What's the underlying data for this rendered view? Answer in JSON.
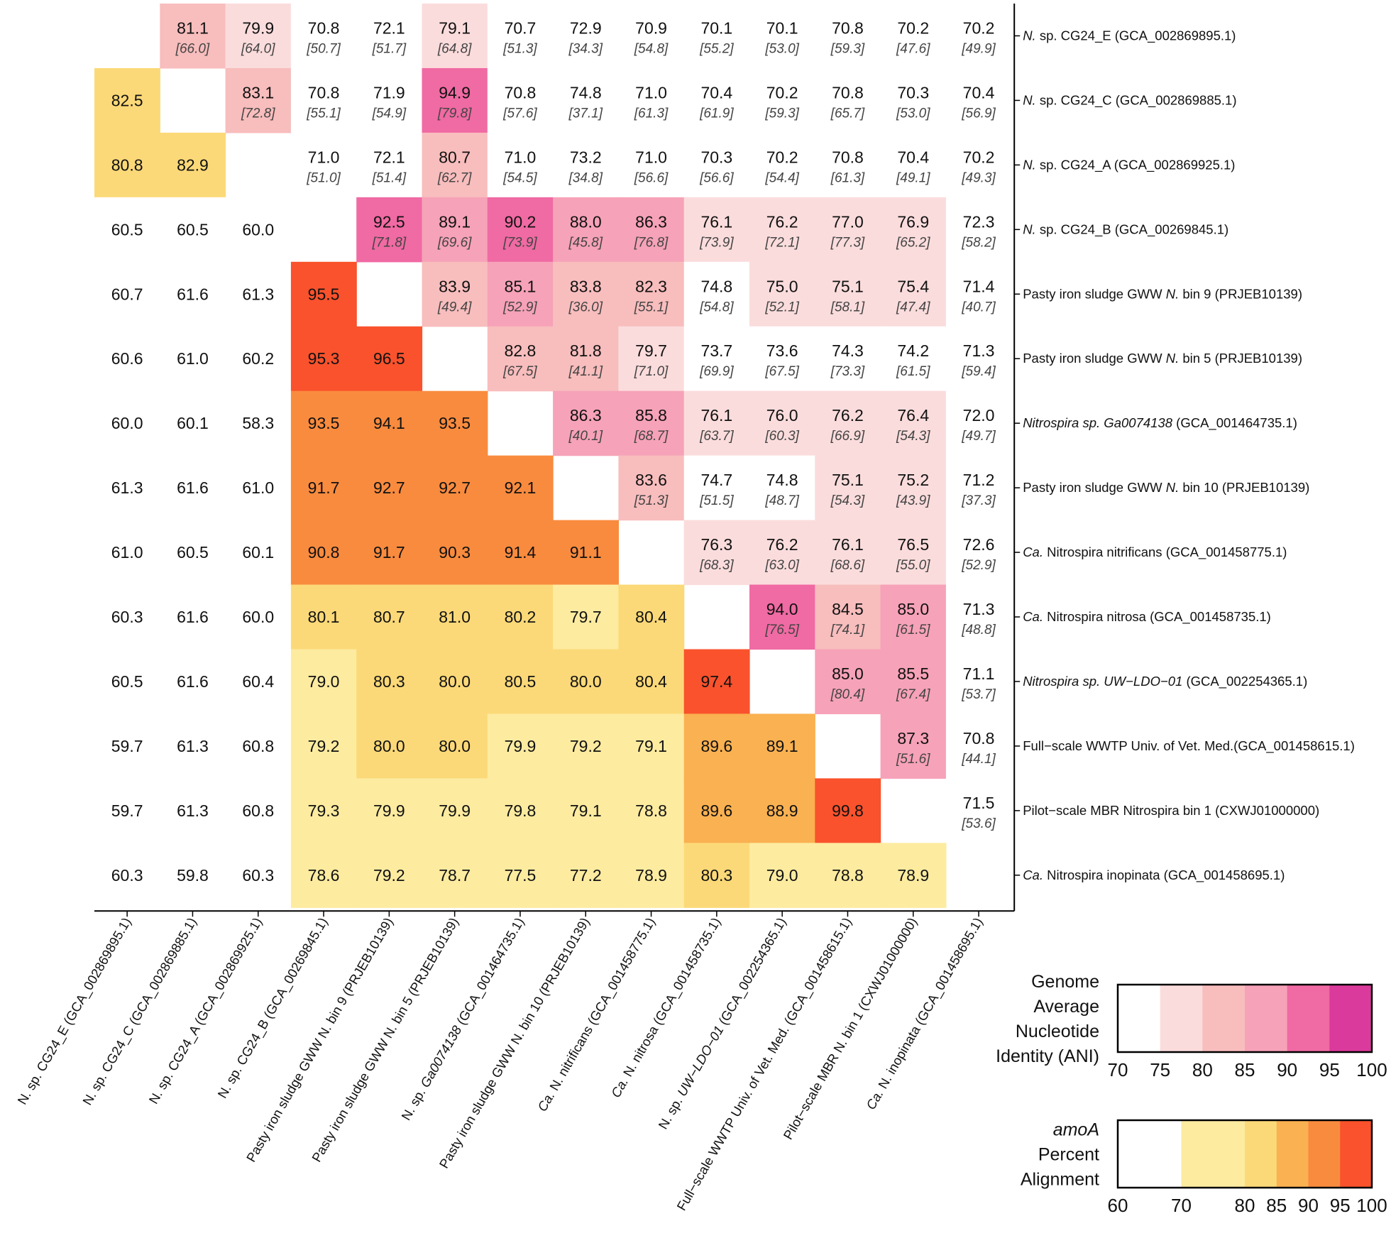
{
  "chart_data": {
    "type": "heatmap",
    "labels": [
      {
        "row": [
          {
            "t": "N.",
            "i": true
          },
          {
            "t": " sp. CG24_E (GCA_002869895.1)",
            "i": false
          }
        ],
        "col": [
          {
            "t": "N. sp. CG24_E (GCA_002869895.1)",
            "i": false
          }
        ]
      },
      {
        "row": [
          {
            "t": "N.",
            "i": true
          },
          {
            "t": " sp. CG24_C (GCA_002869885.1)",
            "i": false
          }
        ],
        "col": [
          {
            "t": "N. sp. CG24_C (GCA_002869885.1)",
            "i": false
          }
        ]
      },
      {
        "row": [
          {
            "t": "N.",
            "i": true
          },
          {
            "t": " sp. CG24_A (GCA_002869925.1)",
            "i": false
          }
        ],
        "col": [
          {
            "t": "N. sp. CG24_A (GCA_002869925.1)",
            "i": false
          }
        ]
      },
      {
        "row": [
          {
            "t": "N.",
            "i": true
          },
          {
            "t": " sp. CG24_B (GCA_00269845.1)",
            "i": false
          }
        ],
        "col": [
          {
            "t": "N. sp. CG24_B (GCA_00269845.1)",
            "i": false
          }
        ]
      },
      {
        "row": [
          {
            "t": "Pasty iron sludge GWW ",
            "i": false
          },
          {
            "t": "N.",
            "i": true
          },
          {
            "t": " bin 9 (PRJEB10139)",
            "i": false
          }
        ],
        "col": [
          {
            "t": "Pasty iron sludge GWW N. bin 9 (PRJEB10139)",
            "i": false
          }
        ]
      },
      {
        "row": [
          {
            "t": "Pasty iron sludge GWW ",
            "i": false
          },
          {
            "t": "N.",
            "i": true
          },
          {
            "t": " bin 5 (PRJEB10139)",
            "i": false
          }
        ],
        "col": [
          {
            "t": "Pasty iron sludge GWW N. bin 5 (PRJEB10139)",
            "i": false
          }
        ]
      },
      {
        "row": [
          {
            "t": "Nitrospira sp. Ga0074138",
            "i": true
          },
          {
            "t": " (GCA_001464735.1)",
            "i": false
          }
        ],
        "col": [
          {
            "t": "N. sp. ",
            "i": false
          },
          {
            "t": "Ga0074138",
            "i": true
          },
          {
            "t": " (GCA_001464735.1)",
            "i": false
          }
        ]
      },
      {
        "row": [
          {
            "t": "Pasty iron sludge GWW ",
            "i": false
          },
          {
            "t": "N.",
            "i": true
          },
          {
            "t": " bin 10 (PRJEB10139)",
            "i": false
          }
        ],
        "col": [
          {
            "t": "Pasty iron sludge GWW N. bin 10 (PRJEB10139)",
            "i": false
          }
        ]
      },
      {
        "row": [
          {
            "t": "Ca.",
            "i": true
          },
          {
            "t": " Nitrospira nitrificans (GCA_001458775.1)",
            "i": false
          }
        ],
        "col": [
          {
            "t": "Ca.",
            "i": true
          },
          {
            "t": " N. nitrificans (GCA_001458775.1)",
            "i": false
          }
        ]
      },
      {
        "row": [
          {
            "t": "Ca.",
            "i": true
          },
          {
            "t": " Nitrospira nitrosa (GCA_001458735.1)",
            "i": false
          }
        ],
        "col": [
          {
            "t": "Ca.",
            "i": true
          },
          {
            "t": " N. nitrosa (GCA_001458735.1)",
            "i": false
          }
        ]
      },
      {
        "row": [
          {
            "t": "Nitrospira sp. UW−LDO−01",
            "i": true
          },
          {
            "t": " (GCA_002254365.1)",
            "i": false
          }
        ],
        "col": [
          {
            "t": "N. sp. ",
            "i": false
          },
          {
            "t": "UW−LDO−01",
            "i": true
          },
          {
            "t": " (GCA_002254365.1)",
            "i": false
          }
        ]
      },
      {
        "row": [
          {
            "t": "Full−scale WWTP Univ. of Vet. Med.(GCA_001458615.1)",
            "i": false
          }
        ],
        "col": [
          {
            "t": "Full−scale WWTP Univ. of Vet. Med. (GCA_001458615.1)",
            "i": false
          }
        ]
      },
      {
        "row": [
          {
            "t": "Pilot−scale MBR Nitrospira bin 1 (CXWJ01000000)",
            "i": false
          }
        ],
        "col": [
          {
            "t": "Pilot−scale MBR N. bin 1 (CXWJ01000000)",
            "i": false
          }
        ]
      },
      {
        "row": [
          {
            "t": "Ca.",
            "i": true
          },
          {
            "t": " Nitrospira inopinata (GCA_001458695.1)",
            "i": false
          }
        ],
        "col": [
          {
            "t": "Ca.",
            "i": true
          },
          {
            "t": " N. inopinata (GCA_001458695.1)",
            "i": false
          }
        ]
      }
    ],
    "upper": [
      [
        null,
        [
          81.1,
          "66.0"
        ],
        [
          79.9,
          "64.0"
        ],
        [
          70.8,
          "50.7"
        ],
        [
          72.1,
          "51.7"
        ],
        [
          79.1,
          "64.8"
        ],
        [
          70.7,
          "51.3"
        ],
        [
          72.9,
          "34.3"
        ],
        [
          70.9,
          "54.8"
        ],
        [
          70.1,
          "55.2"
        ],
        [
          70.1,
          "53.0"
        ],
        [
          70.8,
          "59.3"
        ],
        [
          70.2,
          "47.6"
        ],
        [
          70.2,
          "49.9"
        ]
      ],
      [
        null,
        null,
        [
          83.1,
          "72.8"
        ],
        [
          70.8,
          "55.1"
        ],
        [
          71.9,
          "54.9"
        ],
        [
          94.9,
          "79.8"
        ],
        [
          70.8,
          "57.6"
        ],
        [
          74.8,
          "37.1"
        ],
        [
          71.0,
          "61.3"
        ],
        [
          70.4,
          "61.9"
        ],
        [
          70.2,
          "59.3"
        ],
        [
          70.8,
          "65.7"
        ],
        [
          70.3,
          "53.0"
        ],
        [
          70.4,
          "56.9"
        ]
      ],
      [
        null,
        null,
        null,
        [
          71.0,
          "51.0"
        ],
        [
          72.1,
          "51.4"
        ],
        [
          80.7,
          "62.7"
        ],
        [
          71.0,
          "54.5"
        ],
        [
          73.2,
          "34.8"
        ],
        [
          71.0,
          "56.6"
        ],
        [
          70.3,
          "56.6"
        ],
        [
          70.2,
          "54.4"
        ],
        [
          70.8,
          "61.3"
        ],
        [
          70.4,
          "49.1"
        ],
        [
          70.2,
          "49.3"
        ]
      ],
      [
        null,
        null,
        null,
        null,
        [
          92.5,
          "71.8"
        ],
        [
          89.1,
          "69.6"
        ],
        [
          90.2,
          "73.9"
        ],
        [
          88.0,
          "45.8"
        ],
        [
          86.3,
          "76.8"
        ],
        [
          76.1,
          "73.9"
        ],
        [
          76.2,
          "72.1"
        ],
        [
          77.0,
          "77.3"
        ],
        [
          76.9,
          "65.2"
        ],
        [
          72.3,
          "58.2"
        ]
      ],
      [
        null,
        null,
        null,
        null,
        null,
        [
          83.9,
          "49.4"
        ],
        [
          85.1,
          "52.9"
        ],
        [
          83.8,
          "36.0"
        ],
        [
          82.3,
          "55.1"
        ],
        [
          74.8,
          "54.8"
        ],
        [
          75.0,
          "52.1"
        ],
        [
          75.1,
          "58.1"
        ],
        [
          75.4,
          "47.4"
        ],
        [
          71.4,
          "40.7"
        ]
      ],
      [
        null,
        null,
        null,
        null,
        null,
        null,
        [
          82.8,
          "67.5"
        ],
        [
          81.8,
          "41.1"
        ],
        [
          79.7,
          "71.0"
        ],
        [
          73.7,
          "69.9"
        ],
        [
          73.6,
          "67.5"
        ],
        [
          74.3,
          "73.3"
        ],
        [
          74.2,
          "61.5"
        ],
        [
          71.3,
          "59.4"
        ]
      ],
      [
        null,
        null,
        null,
        null,
        null,
        null,
        null,
        [
          86.3,
          "40.1"
        ],
        [
          85.8,
          "68.7"
        ],
        [
          76.1,
          "63.7"
        ],
        [
          76.0,
          "60.3"
        ],
        [
          76.2,
          "66.9"
        ],
        [
          76.4,
          "54.3"
        ],
        [
          72.0,
          "49.7"
        ]
      ],
      [
        null,
        null,
        null,
        null,
        null,
        null,
        null,
        null,
        [
          83.6,
          "51.3"
        ],
        [
          74.7,
          "51.5"
        ],
        [
          74.8,
          "48.7"
        ],
        [
          75.1,
          "54.3"
        ],
        [
          75.2,
          "43.9"
        ],
        [
          71.2,
          "37.3"
        ]
      ],
      [
        null,
        null,
        null,
        null,
        null,
        null,
        null,
        null,
        null,
        [
          76.3,
          "68.3"
        ],
        [
          76.2,
          "63.0"
        ],
        [
          76.1,
          "68.6"
        ],
        [
          76.5,
          "55.0"
        ],
        [
          72.6,
          "52.9"
        ]
      ],
      [
        null,
        null,
        null,
        null,
        null,
        null,
        null,
        null,
        null,
        null,
        [
          94.0,
          "76.5"
        ],
        [
          84.5,
          "74.1"
        ],
        [
          85.0,
          "61.5"
        ],
        [
          71.3,
          "48.8"
        ]
      ],
      [
        null,
        null,
        null,
        null,
        null,
        null,
        null,
        null,
        null,
        null,
        null,
        [
          85.0,
          "80.4"
        ],
        [
          85.5,
          "67.4"
        ],
        [
          71.1,
          "53.7"
        ]
      ],
      [
        null,
        null,
        null,
        null,
        null,
        null,
        null,
        null,
        null,
        null,
        null,
        null,
        [
          87.3,
          "51.6"
        ],
        [
          70.8,
          "44.1"
        ]
      ],
      [
        null,
        null,
        null,
        null,
        null,
        null,
        null,
        null,
        null,
        null,
        null,
        null,
        null,
        [
          71.5,
          "53.6"
        ]
      ],
      [
        null,
        null,
        null,
        null,
        null,
        null,
        null,
        null,
        null,
        null,
        null,
        null,
        null,
        null
      ]
    ],
    "lower": [
      [],
      [
        82.5
      ],
      [
        80.8,
        82.9
      ],
      [
        60.5,
        60.5,
        60.0
      ],
      [
        60.7,
        61.6,
        61.3,
        95.5
      ],
      [
        60.6,
        61.0,
        60.2,
        95.3,
        96.5
      ],
      [
        60.0,
        60.1,
        58.3,
        93.5,
        94.1,
        93.5
      ],
      [
        61.3,
        61.6,
        61.0,
        91.7,
        92.7,
        92.7,
        92.1
      ],
      [
        61.0,
        60.5,
        60.1,
        90.8,
        91.7,
        90.3,
        91.4,
        91.1
      ],
      [
        60.3,
        61.6,
        60.0,
        80.1,
        80.7,
        81.0,
        80.2,
        79.7,
        80.4
      ],
      [
        60.5,
        61.6,
        60.4,
        79.0,
        80.3,
        80.0,
        80.5,
        80.0,
        80.4,
        97.4
      ],
      [
        59.7,
        61.3,
        60.8,
        79.2,
        80.0,
        80.0,
        79.9,
        79.2,
        79.1,
        89.6,
        89.1
      ],
      [
        59.7,
        61.3,
        60.8,
        79.3,
        79.9,
        79.9,
        79.8,
        79.1,
        78.8,
        89.6,
        88.9,
        99.8
      ],
      [
        60.3,
        59.8,
        60.3,
        78.6,
        79.2,
        78.7,
        77.5,
        77.2,
        78.9,
        80.3,
        79.0,
        78.8,
        78.9
      ]
    ],
    "ani_scale": {
      "title": [
        "Genome",
        "Average",
        "Nucleotide",
        "Identity (ANI)"
      ],
      "ticks": [
        70,
        75,
        80,
        85,
        90,
        95,
        100
      ],
      "breaks": [
        70,
        75,
        80,
        85,
        90,
        95,
        100
      ],
      "colors": [
        "#ffffff",
        "#fbdcdc",
        "#f8bdbd",
        "#f6a2b8",
        "#f06aa3",
        "#da3a9b"
      ]
    },
    "amoa_scale": {
      "title": [
        [
          {
            "t": "amoA",
            "i": true
          }
        ],
        [
          {
            "t": "Percent",
            "i": false
          }
        ],
        [
          {
            "t": "Alignment",
            "i": false
          }
        ]
      ],
      "ticks": [
        60,
        70,
        80,
        85,
        90,
        95,
        100
      ],
      "breaks": [
        60,
        70,
        80,
        85,
        90,
        95,
        100
      ],
      "colors": [
        "#ffffff",
        "#fdeba0",
        "#fcd978",
        "#fab151",
        "#f98b3e",
        "#f9522c"
      ]
    }
  }
}
